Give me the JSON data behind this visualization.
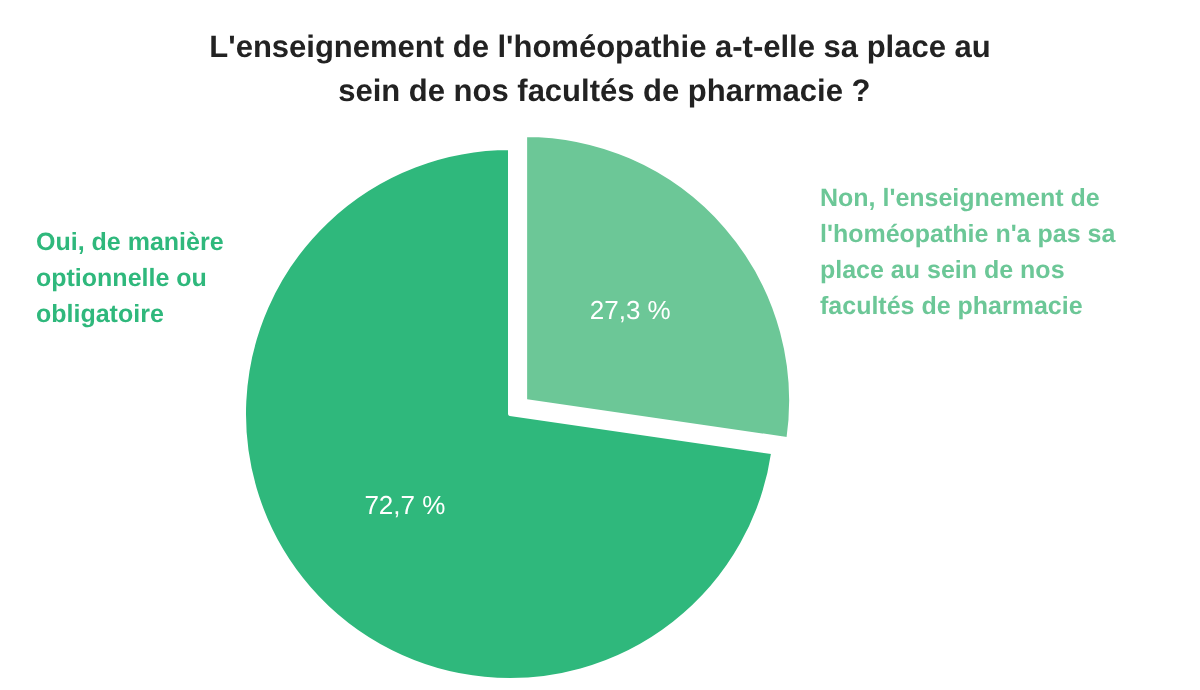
{
  "chart_data": {
    "type": "pie",
    "title": "L'enseignement de l'homéopathie a-t-elle sa place au sein de nos facultés de pharmacie ?",
    "categories": [
      "Non, l'enseignement de l'homéopathie n'a pas sa place au sein de nos facultés de pharmacie",
      "Oui, de manière optionnelle ou obligatoire"
    ],
    "values": [
      27.3,
      72.7
    ],
    "colors": [
      "#6cc797",
      "#2fb87c"
    ],
    "value_labels": [
      "27,3 %",
      "72,7 %"
    ],
    "legend": false
  }
}
